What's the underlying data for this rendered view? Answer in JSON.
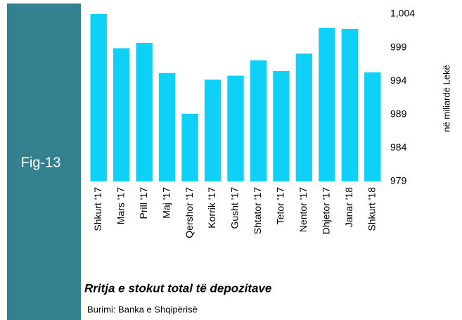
{
  "figure_label": "Fig-13",
  "chart_data": {
    "type": "bar",
    "title": "Rritja e stokut total të depozitave",
    "source": "Burimi: Banka e Shqipërisë",
    "y_axis_label": "në miliardë  Lekë",
    "categories": [
      "Shkurt '17",
      "Mars '17",
      "Prill '17",
      "Maj '17",
      "Qershor '17",
      "Korrik '17",
      "Gusht '17",
      "Shtator '17",
      "Tetor '17",
      "Nentor '17",
      "Dhjetor '17",
      "Janar '18",
      "Shkurt '18"
    ],
    "values": [
      1004.0,
      998.9,
      999.7,
      995.2,
      989.1,
      994.2,
      994.8,
      997.1,
      995.5,
      998.1,
      1001.9,
      1001.8,
      995.3
    ],
    "color": "#0fd0f7",
    "ylim": [
      979,
      1004
    ],
    "yticks": [
      979,
      984,
      989,
      994,
      999,
      {
        "value": 1004,
        "label": "1,004"
      }
    ],
    "grid": false
  }
}
